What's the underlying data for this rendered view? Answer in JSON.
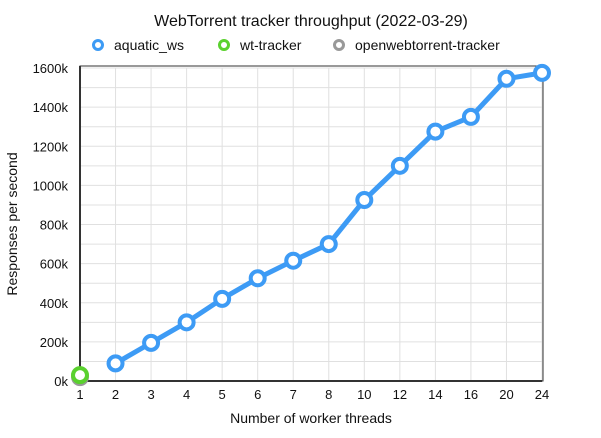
{
  "chart_data": {
    "type": "line",
    "title": "WebTorrent tracker throughput (2022-03-29)",
    "xlabel": "Number of worker threads",
    "ylabel": "Responses per second",
    "categories": [
      "1",
      "2",
      "3",
      "4",
      "5",
      "6",
      "7",
      "8",
      "10",
      "12",
      "14",
      "16",
      "20",
      "24"
    ],
    "ylim": [
      0,
      1600000
    ],
    "yticks": [
      0,
      200000,
      400000,
      600000,
      800000,
      1000000,
      1200000,
      1400000,
      1600000
    ],
    "ytick_labels": [
      "0k",
      "200k",
      "400k",
      "600k",
      "800k",
      "1000k",
      "1200k",
      "1400k",
      "1600k"
    ],
    "grid": true,
    "legend_placement": "top",
    "series": [
      {
        "name": "aquatic_ws",
        "color": "#3d9bf5",
        "values": [
          null,
          90000,
          195000,
          300000,
          420000,
          525000,
          615000,
          700000,
          925000,
          1100000,
          1275000,
          1350000,
          1545000,
          1575000
        ]
      },
      {
        "name": "wt-tracker",
        "color": "#5ad12e",
        "values": [
          30000,
          null,
          null,
          null,
          null,
          null,
          null,
          null,
          null,
          null,
          null,
          null,
          null,
          null
        ]
      },
      {
        "name": "openwebtorrent-tracker",
        "color": "#999999",
        "values": [
          20000,
          null,
          null,
          null,
          null,
          null,
          null,
          null,
          null,
          null,
          null,
          null,
          null,
          null
        ]
      }
    ]
  }
}
